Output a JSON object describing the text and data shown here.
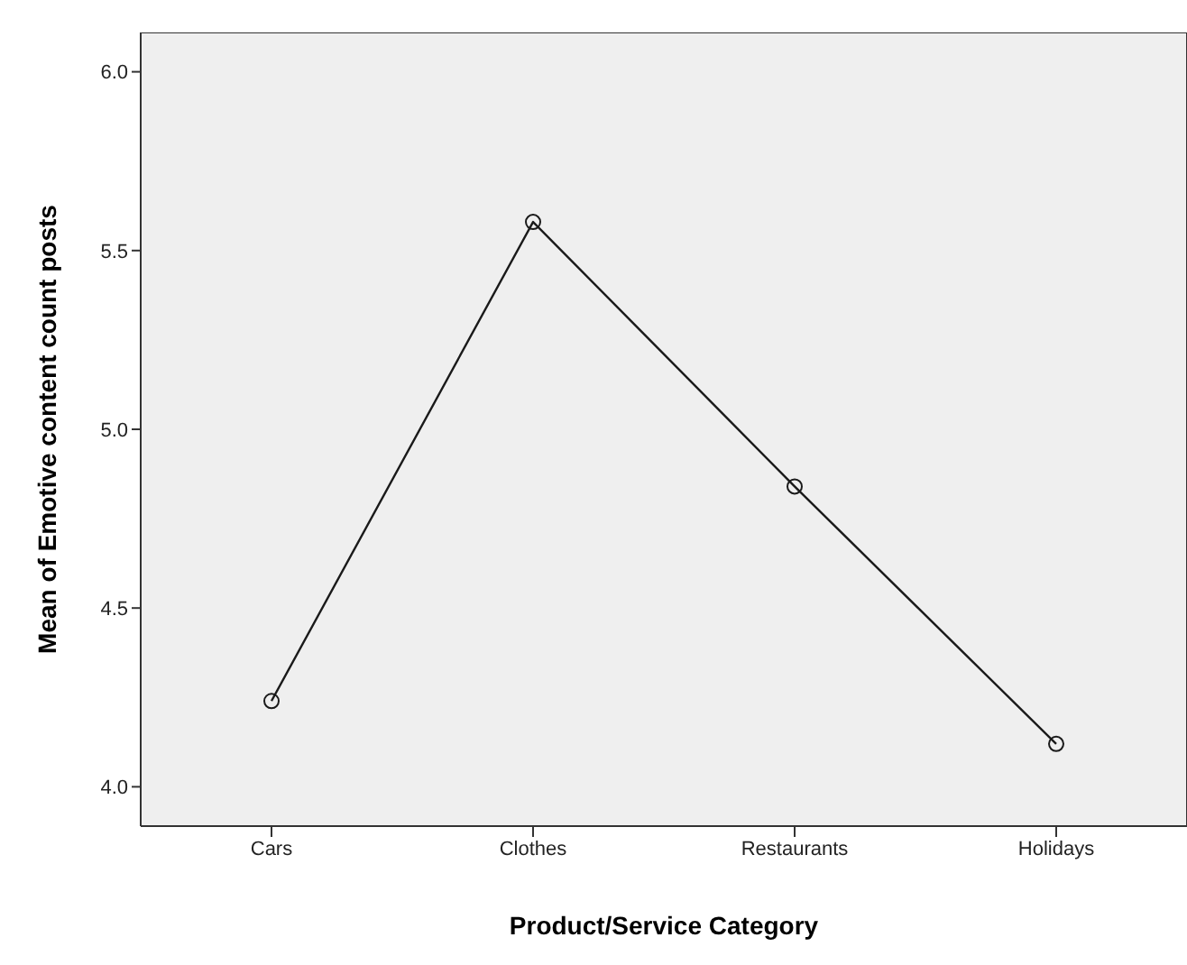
{
  "chart_data": {
    "type": "line",
    "xlabel": "Product/Service Category",
    "ylabel": "Mean of Emotive content count posts",
    "categories": [
      "Cars",
      "Clothes",
      "Restaurants",
      "Holidays"
    ],
    "series": [
      {
        "color": "#1a1a1a",
        "values": [
          4.24,
          5.58,
          4.84,
          4.12
        ]
      }
    ],
    "ylim": [
      3.89,
      6.11
    ],
    "yticks": [
      {
        "value": 4,
        "label": "4.0"
      },
      4.5,
      {
        "value": 5,
        "label": "5.0"
      },
      5.5,
      {
        "value": 6,
        "label": "6.0"
      }
    ],
    "grid": false,
    "marker": "circle",
    "line_style": "solid"
  }
}
